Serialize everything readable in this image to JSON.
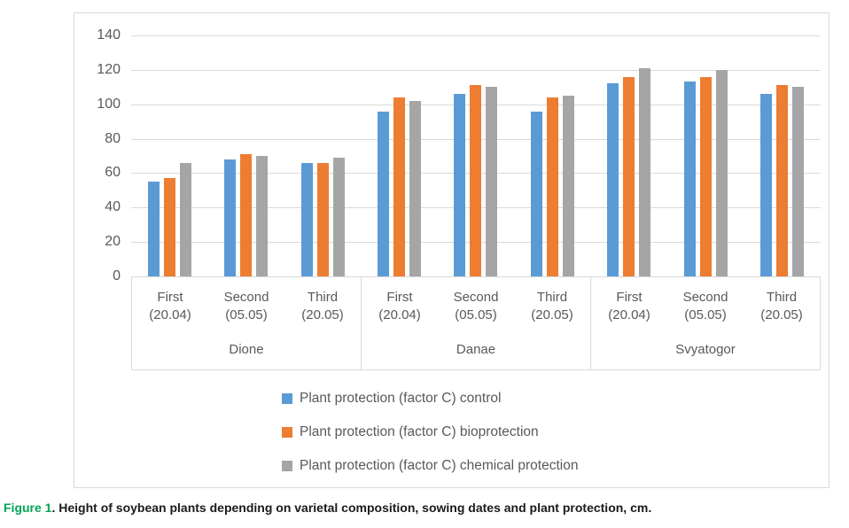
{
  "caption": {
    "label": "Figure 1",
    "label_color": "#00A455",
    "text": ". Height of soybean plants depending on varietal composition, sowing dates and plant protection, cm."
  },
  "chart_data": {
    "type": "bar",
    "title": "",
    "xlabel": "",
    "ylabel": "",
    "ylim": [
      0,
      140
    ],
    "yticks": [
      0,
      20,
      40,
      60,
      80,
      100,
      120,
      140
    ],
    "grid": true,
    "gridline_color": "#d9d9d9",
    "axis_text_color": "#595959",
    "legend_position": "bottom",
    "group_labels": [
      "Dione",
      "Danae",
      "Svyatogor"
    ],
    "date_categories": [
      {
        "line1": "First",
        "line2": "(20.04)"
      },
      {
        "line1": "Second",
        "line2": "(05.05)"
      },
      {
        "line1": "Third",
        "line2": "(20.05)"
      }
    ],
    "series": [
      {
        "name": "Plant protection (factor C) control",
        "color": "#5B9BD5",
        "values": [
          [
            55,
            68,
            66
          ],
          [
            96,
            106,
            96
          ],
          [
            112,
            113,
            106
          ]
        ]
      },
      {
        "name": "Plant protection (factor C) bioprotection",
        "color": "#ED7D31",
        "values": [
          [
            57,
            71,
            66
          ],
          [
            104,
            111,
            104
          ],
          [
            116,
            116,
            111
          ]
        ]
      },
      {
        "name": "Plant protection (factor C) chemical protection",
        "color": "#A5A5A5",
        "values": [
          [
            66,
            70,
            69
          ],
          [
            102,
            110,
            105
          ],
          [
            121,
            120,
            110
          ]
        ]
      }
    ]
  }
}
